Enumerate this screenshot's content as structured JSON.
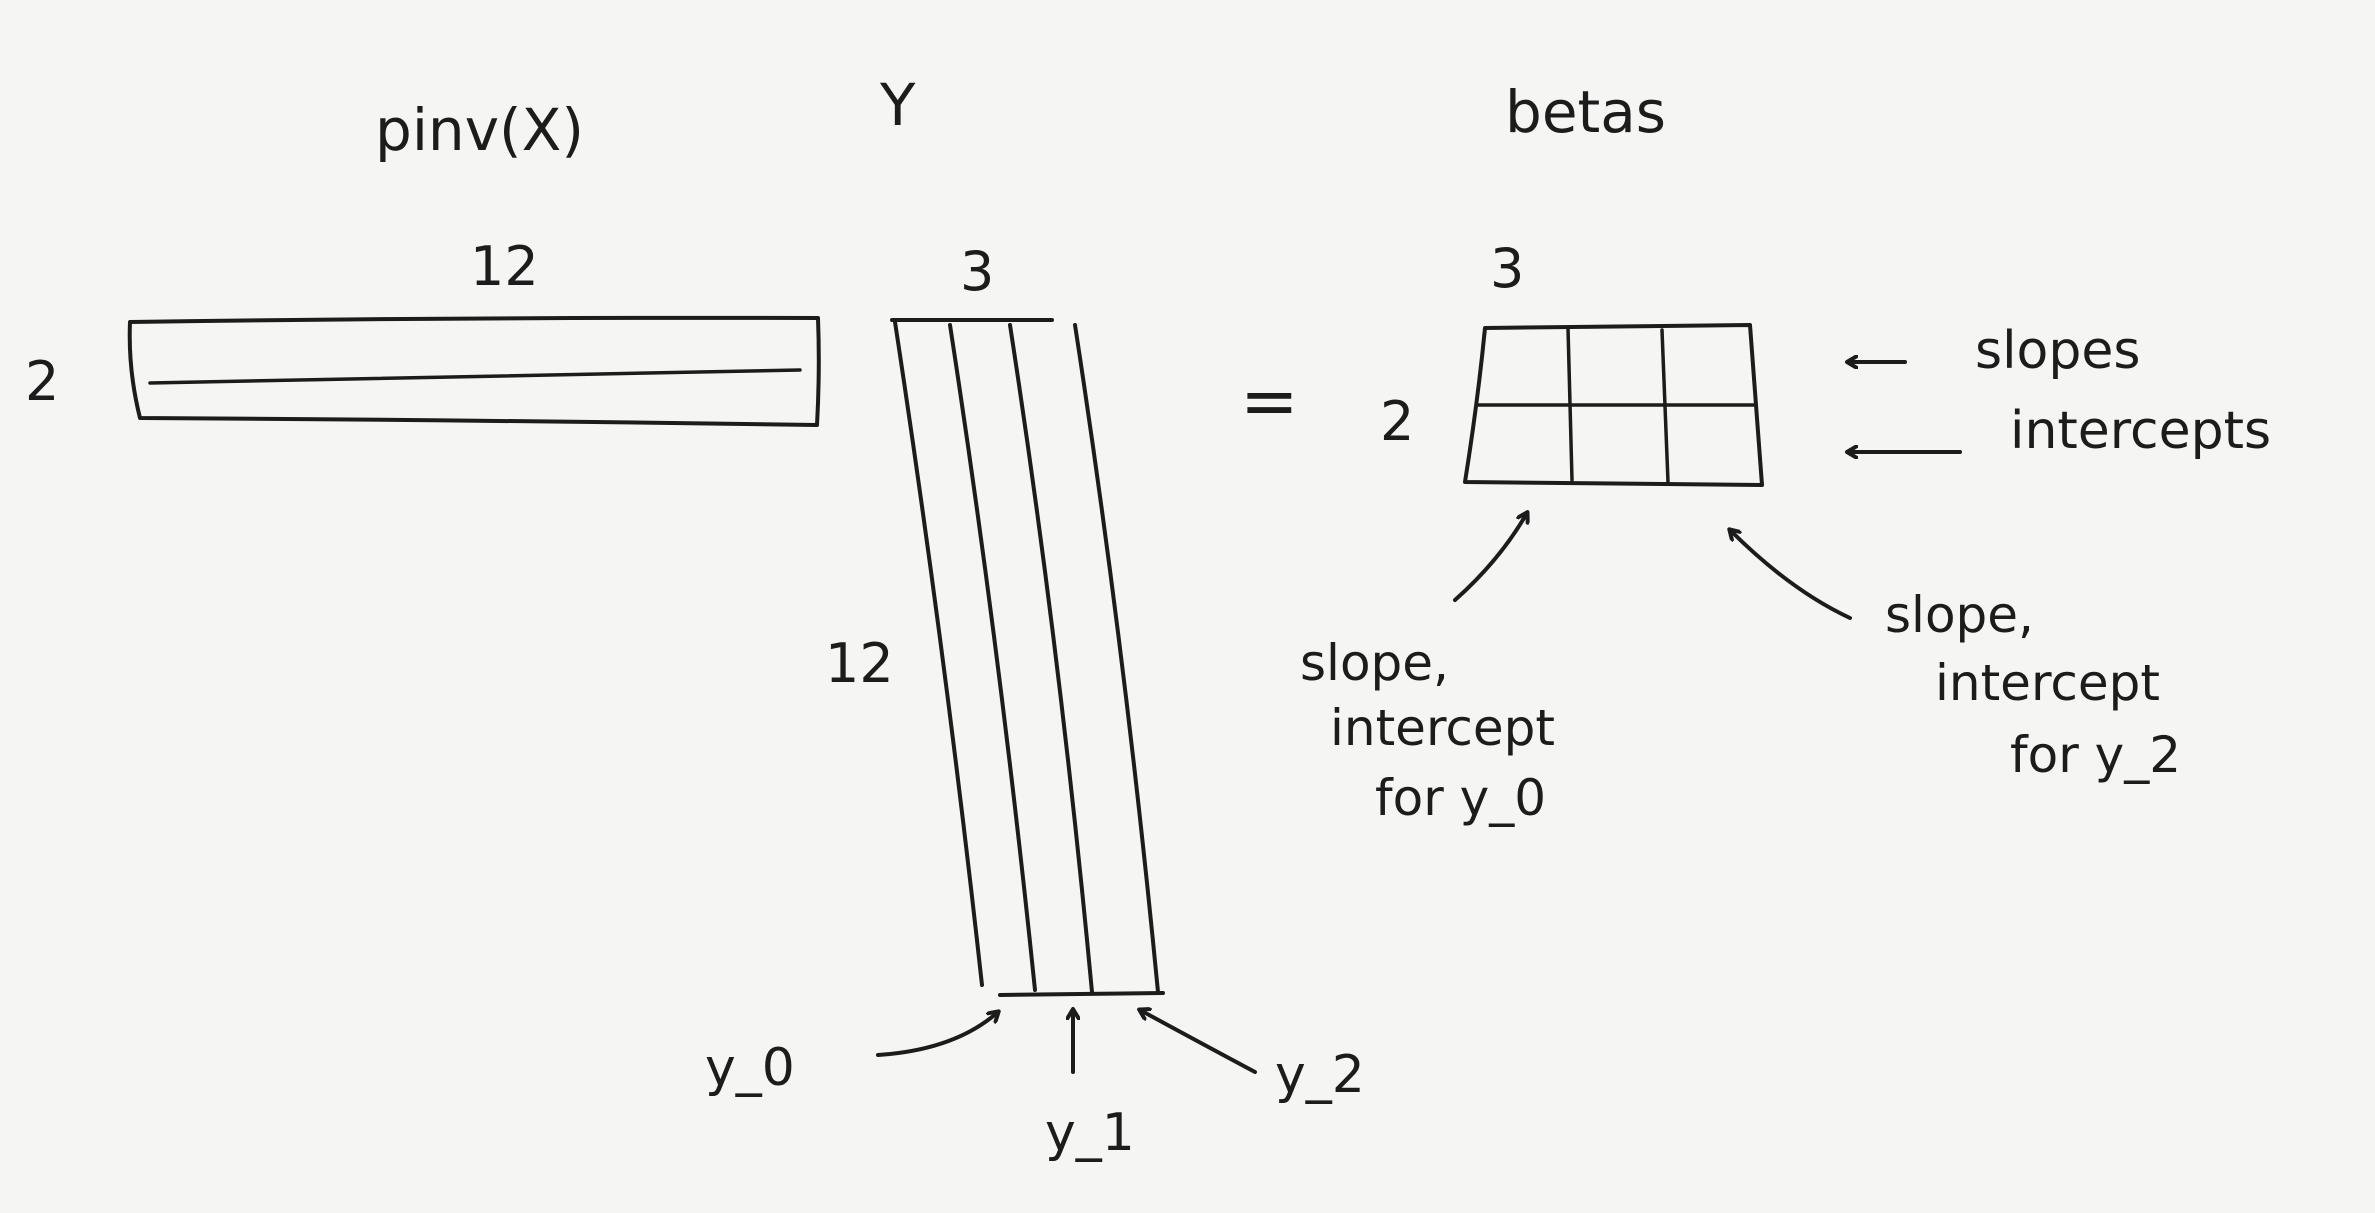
{
  "headings": {
    "pinv": "pinv(X)",
    "y": "Y",
    "betas": "betas"
  },
  "pinv_matrix": {
    "cols": "12",
    "rows": "2"
  },
  "y_matrix": {
    "cols": "3",
    "rows": "12"
  },
  "equals": "=",
  "betas_matrix": {
    "cols": "3",
    "rows": "2"
  },
  "row_labels": {
    "slopes": "slopes",
    "intercepts": "intercepts"
  },
  "column_labels": {
    "y0": "y_0",
    "y1": "y_1",
    "y2": "y_2"
  },
  "notes": {
    "first": [
      "slope,",
      "intercept",
      "for y_0"
    ],
    "last": [
      "slope,",
      "intercept",
      "for y_2"
    ]
  },
  "colors": {
    "ink": "#1c1c1c",
    "paper": "#f5f5f3"
  }
}
